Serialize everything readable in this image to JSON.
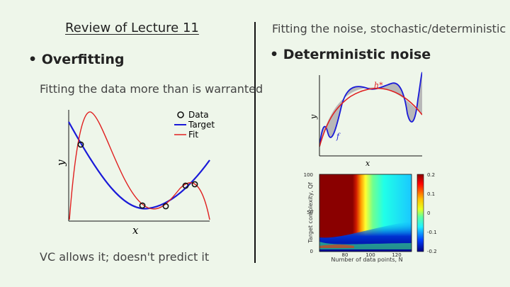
{
  "left": {
    "title": "Review of Lecture 11",
    "bullet": "Overfitting",
    "description": "Fitting the data more than is warranted",
    "footer": "VC allows it; doesn't predict it"
  },
  "right": {
    "title": "Fitting the noise, stochastic/deterministic",
    "bullet": "Deterministic noise"
  },
  "chart_data": [
    {
      "type": "line",
      "xlabel": "x",
      "ylabel": "y",
      "legend": [
        "Data",
        "Target",
        "Fit"
      ],
      "legend_position": "top-right",
      "series": [
        {
          "name": "Data",
          "color": "#111111"
        },
        {
          "name": "Target",
          "color": "#1a1ad8"
        },
        {
          "name": "Fit",
          "color": "#e02020"
        }
      ]
    },
    {
      "type": "line",
      "xlabel": "x",
      "ylabel": "y",
      "labels": [
        "h*",
        "f"
      ],
      "colors": {
        "h*": "#e02020",
        "f": "#1a1ad8",
        "area": "#b8b8b8"
      }
    },
    {
      "type": "heatmap",
      "xlabel": "Number of data points, N",
      "ylabel": "Target complexity, Qf",
      "x_ticks": [
        "80",
        "100",
        "120"
      ],
      "y_ticks": [
        "0",
        "50",
        "100"
      ],
      "colorbar_ticks": [
        "0.2",
        "0.1",
        "0",
        "-0.1",
        "-0.2"
      ],
      "colorbar_range": [
        -0.2,
        0.2
      ]
    }
  ]
}
